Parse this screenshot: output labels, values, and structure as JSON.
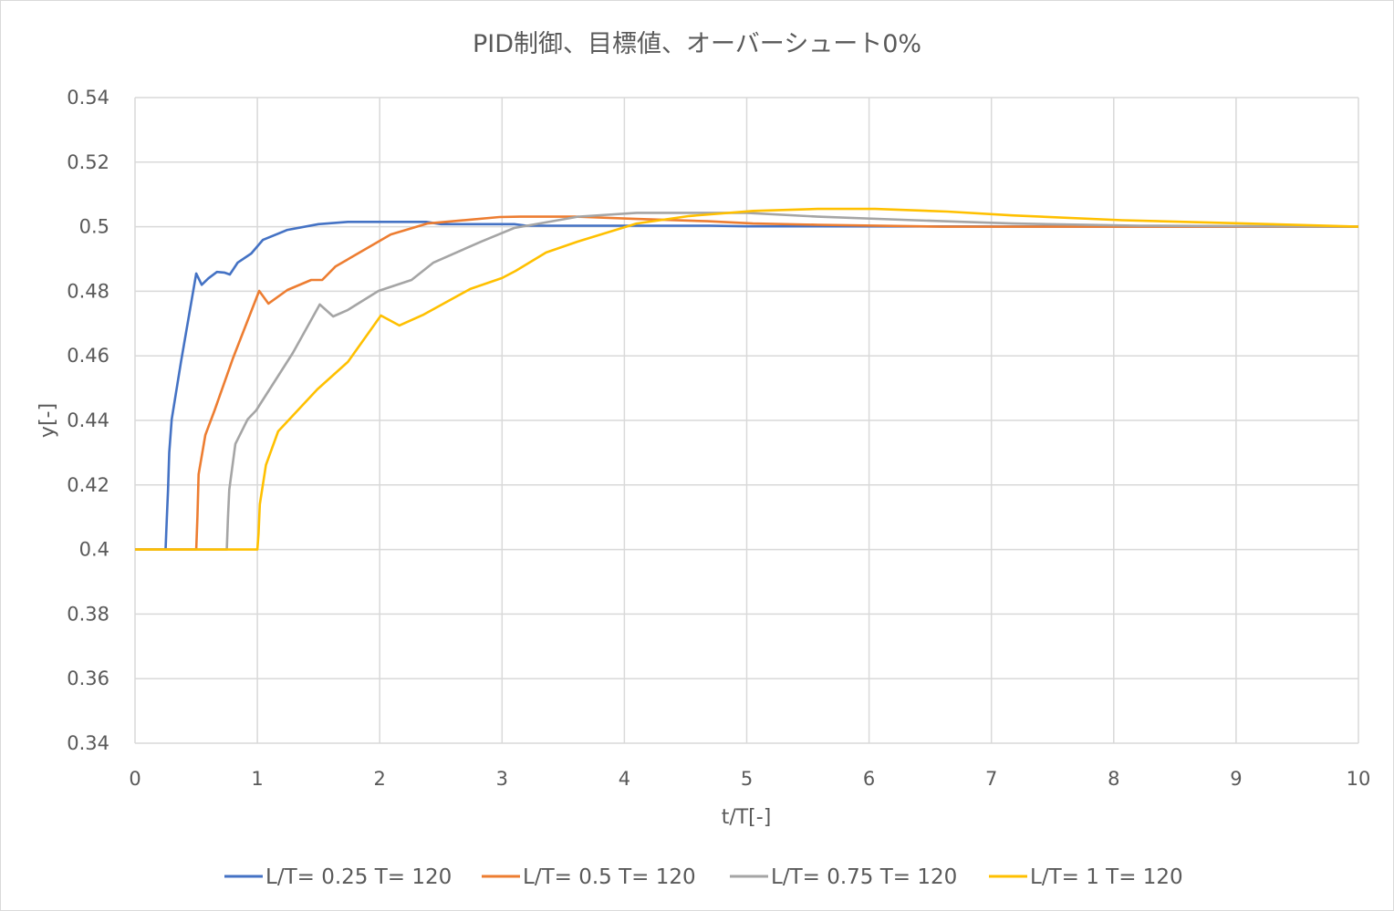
{
  "chart_data": {
    "type": "line",
    "title": "PID制御、目標値、オーバーシュート0%",
    "xlabel": "t/T[-]",
    "ylabel": "y[-]",
    "xlim": [
      0,
      10
    ],
    "ylim": [
      0.34,
      0.54
    ],
    "x_ticks": [
      "0",
      "1",
      "2",
      "3",
      "4",
      "5",
      "6",
      "7",
      "8",
      "9",
      "10"
    ],
    "y_ticks": [
      "0.34",
      "0.36",
      "0.38",
      "0.4",
      "0.42",
      "0.44",
      "0.46",
      "0.48",
      "0.5",
      "0.52",
      "0.54"
    ],
    "grid": true,
    "legend_position": "bottom",
    "series": [
      {
        "name": "L/T= 0.25 T= 120",
        "color": "#4472C4",
        "points": [
          [
            0,
            0.4
          ],
          [
            0.25,
            0.4
          ],
          [
            0.26,
            0.41
          ],
          [
            0.27,
            0.4185
          ],
          [
            0.28,
            0.43
          ],
          [
            0.3,
            0.4403
          ],
          [
            0.375,
            0.458
          ],
          [
            0.5,
            0.4855
          ],
          [
            0.545,
            0.482
          ],
          [
            0.6,
            0.484
          ],
          [
            0.67,
            0.486
          ],
          [
            0.73,
            0.4858
          ],
          [
            0.775,
            0.4852
          ],
          [
            0.84,
            0.4889
          ],
          [
            0.95,
            0.4917
          ],
          [
            1.045,
            0.4959
          ],
          [
            1.245,
            0.499
          ],
          [
            1.5,
            0.5008
          ],
          [
            1.74,
            0.5015
          ],
          [
            2.38,
            0.5015
          ],
          [
            2.5,
            0.5008
          ],
          [
            3.1,
            0.5008
          ],
          [
            3.2,
            0.5003
          ],
          [
            4.7,
            0.5003
          ],
          [
            5.0,
            0.5001
          ],
          [
            10,
            0.5
          ]
        ]
      },
      {
        "name": "L/T= 0.5 T= 120",
        "color": "#ED7D31",
        "points": [
          [
            0,
            0.4
          ],
          [
            0.5,
            0.4
          ],
          [
            0.51,
            0.41
          ],
          [
            0.52,
            0.4233
          ],
          [
            0.575,
            0.4355
          ],
          [
            0.65,
            0.4431
          ],
          [
            0.8,
            0.4592
          ],
          [
            1.015,
            0.4801
          ],
          [
            1.09,
            0.4762
          ],
          [
            1.245,
            0.4804
          ],
          [
            1.44,
            0.4835
          ],
          [
            1.53,
            0.4835
          ],
          [
            1.64,
            0.4877
          ],
          [
            1.99,
            0.4954
          ],
          [
            2.09,
            0.4976
          ],
          [
            2.39,
            0.501
          ],
          [
            2.98,
            0.503
          ],
          [
            3.15,
            0.5031
          ],
          [
            3.6,
            0.5031
          ],
          [
            4.1,
            0.5024
          ],
          [
            4.68,
            0.5017
          ],
          [
            5.05,
            0.501
          ],
          [
            5.58,
            0.5006
          ],
          [
            6.6,
            0.5
          ],
          [
            10,
            0.5
          ]
        ]
      },
      {
        "name": "L/T= 0.75 T= 120",
        "color": "#A5A5A5",
        "points": [
          [
            0,
            0.4
          ],
          [
            0.75,
            0.4
          ],
          [
            0.76,
            0.41
          ],
          [
            0.77,
            0.4185
          ],
          [
            0.82,
            0.4327
          ],
          [
            0.92,
            0.4403
          ],
          [
            0.99,
            0.4431
          ],
          [
            1.29,
            0.4609
          ],
          [
            1.51,
            0.4759
          ],
          [
            1.62,
            0.4722
          ],
          [
            1.74,
            0.4742
          ],
          [
            1.99,
            0.4801
          ],
          [
            2.26,
            0.4835
          ],
          [
            2.44,
            0.4889
          ],
          [
            2.83,
            0.4954
          ],
          [
            3.1,
            0.4996
          ],
          [
            3.62,
            0.5031
          ],
          [
            4.1,
            0.5043
          ],
          [
            5.0,
            0.5043
          ],
          [
            5.58,
            0.5031
          ],
          [
            6.37,
            0.502
          ],
          [
            7.17,
            0.501
          ],
          [
            8.2,
            0.5003
          ],
          [
            10,
            0.5
          ]
        ]
      },
      {
        "name": "L/T= 1 T= 120",
        "color": "#FFC000",
        "points": [
          [
            0,
            0.4
          ],
          [
            1.0,
            0.4
          ],
          [
            1.01,
            0.405
          ],
          [
            1.02,
            0.414
          ],
          [
            1.07,
            0.4262
          ],
          [
            1.17,
            0.4366
          ],
          [
            1.49,
            0.4496
          ],
          [
            1.74,
            0.4581
          ],
          [
            2.01,
            0.4725
          ],
          [
            2.16,
            0.4694
          ],
          [
            2.36,
            0.4728
          ],
          [
            2.74,
            0.4807
          ],
          [
            3.0,
            0.4841
          ],
          [
            3.11,
            0.4863
          ],
          [
            3.36,
            0.492
          ],
          [
            3.62,
            0.4954
          ],
          [
            4.1,
            0.501
          ],
          [
            4.53,
            0.5033
          ],
          [
            5.05,
            0.5049
          ],
          [
            5.58,
            0.5055
          ],
          [
            6.05,
            0.5055
          ],
          [
            6.64,
            0.5047
          ],
          [
            7.17,
            0.5035
          ],
          [
            8.07,
            0.502
          ],
          [
            9.28,
            0.5008
          ],
          [
            10,
            0.5
          ]
        ]
      }
    ]
  }
}
